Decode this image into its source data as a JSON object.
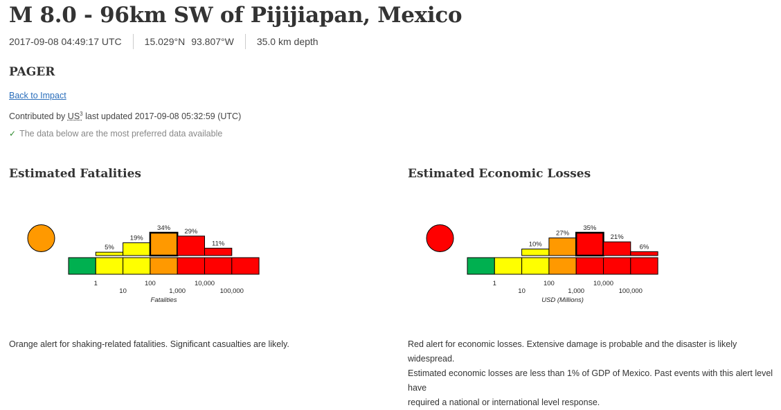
{
  "header": {
    "title": "M 8.0 - 96km SW of Pijijiapan, Mexico",
    "time": "2017-09-08 04:49:17 UTC",
    "lat": "15.029°N",
    "lon": "93.807°W",
    "depth": "35.0 km depth"
  },
  "product": {
    "heading": "PAGER",
    "back_link": "Back to Impact",
    "contrib_prefix": "Contributed by",
    "network": "US",
    "network_sup": "3",
    "contrib_suffix": "last updated 2017-09-08 05:32:59 (UTC)",
    "preferred_note": "The data below are the most preferred data available"
  },
  "colors": {
    "green": "#00b050",
    "yellow": "#ffff00",
    "orange": "#ff9900",
    "red": "#ff0000"
  },
  "chart_data": [
    {
      "type": "bar",
      "title": "Estimated Fatalities",
      "xlabel": "Fatalities",
      "alert_color": "orange",
      "tick_labels": [
        "1",
        "10",
        "100",
        "1,000",
        "10,000",
        "100,000"
      ],
      "bins": [
        "0",
        "1-10",
        "10-100",
        "100-1,000",
        "1,000-10,000",
        "10,000-100,000",
        "100,000+"
      ],
      "bin_colors": [
        "green",
        "yellow",
        "yellow",
        "orange",
        "red",
        "red",
        "red"
      ],
      "values": [
        null,
        5,
        19,
        34,
        29,
        11,
        null
      ],
      "value_labels": [
        "",
        "5%",
        "19%",
        "34%",
        "29%",
        "11%",
        ""
      ],
      "most_likely_bin": 3,
      "description": "Orange alert for shaking-related fatalities. Significant casualties are likely."
    },
    {
      "type": "bar",
      "title": "Estimated Economic Losses",
      "xlabel": "USD (Millions)",
      "alert_color": "red",
      "tick_labels": [
        "1",
        "10",
        "100",
        "1,000",
        "10,000",
        "100,000"
      ],
      "bins": [
        "0",
        "1-10",
        "10-100",
        "100-1,000",
        "1,000-10,000",
        "10,000-100,000",
        "100,000+"
      ],
      "bin_colors": [
        "green",
        "yellow",
        "yellow",
        "orange",
        "red",
        "red",
        "red"
      ],
      "values": [
        null,
        null,
        10,
        27,
        35,
        21,
        6
      ],
      "value_labels": [
        "",
        "",
        "10%",
        "27%",
        "35%",
        "21%",
        "6%"
      ],
      "most_likely_bin": 4,
      "description_lines": [
        "Red alert for economic losses. Extensive damage is probable and the disaster is likely widespread.",
        "Estimated economic losses are less than 1% of GDP of Mexico. Past events with this alert level have",
        "required a national or international level response."
      ]
    }
  ]
}
